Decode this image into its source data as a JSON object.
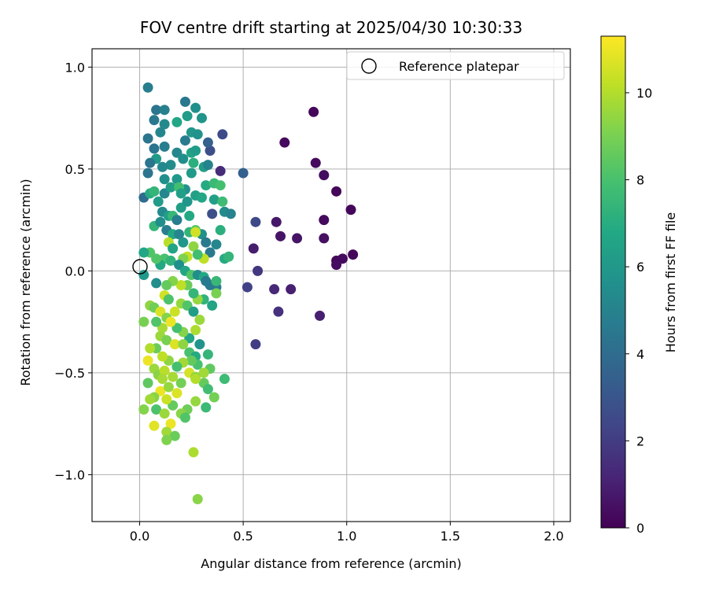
{
  "chart_data": {
    "type": "scatter",
    "title": "FOV centre drift starting at 2025/04/30 10:30:33",
    "xlabel": "Angular distance from reference (arcmin)",
    "ylabel": "Rotation from reference (arcmin)",
    "xlim": [
      -0.23,
      2.08
    ],
    "ylim": [
      -1.23,
      1.09
    ],
    "xticks": [
      0.0,
      0.5,
      1.0,
      1.5,
      2.0
    ],
    "xtick_labels": [
      "0.0",
      "0.5",
      "1.0",
      "1.5",
      "2.0"
    ],
    "yticks": [
      -1.0,
      -0.5,
      0.0,
      0.5,
      1.0
    ],
    "ytick_labels": [
      "−1.0",
      "−0.5",
      "0.0",
      "0.5",
      "1.0"
    ],
    "grid": true,
    "legend": {
      "placement": "top-right",
      "entries": [
        "Reference platepar"
      ]
    },
    "reference_point": {
      "x": 0.0,
      "y": 0.0
    },
    "colorbar": {
      "label": "Hours from first FF file",
      "range": [
        0,
        11.3
      ],
      "ticks": [
        0,
        2,
        4,
        6,
        8,
        10
      ],
      "tick_labels": [
        "0",
        "2",
        "4",
        "6",
        "8",
        "10"
      ],
      "colormap": "viridis"
    },
    "points": [
      [
        0.84,
        0.78,
        0.2
      ],
      [
        0.7,
        0.63,
        0.3
      ],
      [
        0.85,
        0.53,
        0.3
      ],
      [
        0.89,
        0.47,
        0.4
      ],
      [
        0.95,
        0.39,
        0.2
      ],
      [
        1.02,
        0.3,
        0.2
      ],
      [
        0.89,
        0.25,
        0.3
      ],
      [
        0.89,
        0.16,
        0.5
      ],
      [
        0.76,
        0.16,
        0.6
      ],
      [
        0.68,
        0.17,
        0.6
      ],
      [
        0.66,
        0.24,
        0.7
      ],
      [
        0.95,
        0.05,
        0.2
      ],
      [
        0.98,
        0.06,
        0.3
      ],
      [
        1.03,
        0.08,
        0.2
      ],
      [
        0.95,
        0.03,
        0.4
      ],
      [
        0.87,
        -0.22,
        1.0
      ],
      [
        0.73,
        -0.09,
        1.0
      ],
      [
        0.65,
        -0.09,
        1.3
      ],
      [
        0.67,
        -0.2,
        1.6
      ],
      [
        0.55,
        0.11,
        0.9
      ],
      [
        0.56,
        0.24,
        2.5
      ],
      [
        0.57,
        0.0,
        1.8
      ],
      [
        0.52,
        -0.08,
        2.2
      ],
      [
        0.56,
        -0.36,
        2.0
      ],
      [
        0.5,
        0.48,
        3.5
      ],
      [
        0.39,
        0.49,
        1.4
      ],
      [
        0.4,
        0.67,
        2.6
      ],
      [
        0.34,
        0.59,
        2.7
      ],
      [
        0.33,
        0.63,
        3.5
      ],
      [
        0.35,
        0.28,
        2.7
      ],
      [
        0.04,
        0.9,
        4.8
      ],
      [
        0.08,
        0.79,
        4.4
      ],
      [
        0.12,
        0.79,
        4.9
      ],
      [
        0.22,
        0.83,
        4.5
      ],
      [
        0.27,
        0.8,
        5.6
      ],
      [
        0.3,
        0.75,
        5.8
      ],
      [
        0.23,
        0.76,
        6.2
      ],
      [
        0.18,
        0.73,
        6.7
      ],
      [
        0.12,
        0.72,
        5.3
      ],
      [
        0.07,
        0.74,
        4.5
      ],
      [
        0.1,
        0.68,
        5.2
      ],
      [
        0.04,
        0.65,
        4.4
      ],
      [
        0.07,
        0.6,
        4.4
      ],
      [
        0.12,
        0.61,
        4.8
      ],
      [
        0.18,
        0.58,
        5.2
      ],
      [
        0.22,
        0.64,
        4.7
      ],
      [
        0.25,
        0.68,
        6.0
      ],
      [
        0.28,
        0.67,
        5.7
      ],
      [
        0.21,
        0.55,
        5.5
      ],
      [
        0.25,
        0.58,
        6.6
      ],
      [
        0.27,
        0.59,
        6.2
      ],
      [
        0.31,
        0.51,
        6.3
      ],
      [
        0.33,
        0.52,
        5.0
      ],
      [
        0.25,
        0.48,
        6.1
      ],
      [
        0.26,
        0.53,
        7.1
      ],
      [
        0.15,
        0.52,
        5.4
      ],
      [
        0.11,
        0.51,
        5.3
      ],
      [
        0.08,
        0.55,
        6.1
      ],
      [
        0.05,
        0.53,
        4.4
      ],
      [
        0.04,
        0.48,
        4.4
      ],
      [
        0.12,
        0.45,
        5.6
      ],
      [
        0.18,
        0.45,
        6.0
      ],
      [
        0.22,
        0.4,
        5.7
      ],
      [
        0.27,
        0.37,
        6.4
      ],
      [
        0.3,
        0.36,
        6.7
      ],
      [
        0.32,
        0.42,
        6.9
      ],
      [
        0.36,
        0.43,
        7.6
      ],
      [
        0.39,
        0.42,
        7.9
      ],
      [
        0.36,
        0.35,
        6.4
      ],
      [
        0.4,
        0.34,
        7.7
      ],
      [
        0.41,
        0.29,
        5.4
      ],
      [
        0.44,
        0.28,
        5.0
      ],
      [
        0.02,
        0.36,
        4.0
      ],
      [
        0.05,
        0.38,
        6.9
      ],
      [
        0.07,
        0.39,
        7.4
      ],
      [
        0.09,
        0.34,
        6.2
      ],
      [
        0.12,
        0.38,
        5.2
      ],
      [
        0.15,
        0.41,
        6.3
      ],
      [
        0.19,
        0.41,
        7.8
      ],
      [
        0.2,
        0.38,
        6.4
      ],
      [
        0.11,
        0.29,
        5.4
      ],
      [
        0.14,
        0.27,
        6.3
      ],
      [
        0.16,
        0.27,
        7.5
      ],
      [
        0.18,
        0.25,
        4.8
      ],
      [
        0.2,
        0.31,
        6.3
      ],
      [
        0.23,
        0.34,
        5.9
      ],
      [
        0.24,
        0.27,
        6.8
      ],
      [
        0.07,
        0.22,
        7.4
      ],
      [
        0.1,
        0.24,
        5.5
      ],
      [
        0.13,
        0.2,
        4.8
      ],
      [
        0.16,
        0.18,
        6.8
      ],
      [
        0.19,
        0.18,
        5.2
      ],
      [
        0.21,
        0.14,
        5.9
      ],
      [
        0.24,
        0.19,
        7.3
      ],
      [
        0.27,
        0.2,
        8.3
      ],
      [
        0.3,
        0.18,
        5.6
      ],
      [
        0.32,
        0.14,
        4.6
      ],
      [
        0.34,
        0.09,
        4.6
      ],
      [
        0.37,
        0.13,
        5.2
      ],
      [
        0.39,
        0.2,
        7.1
      ],
      [
        0.41,
        0.06,
        6.9
      ],
      [
        0.43,
        0.07,
        7.4
      ],
      [
        0.27,
        0.19,
        10.5
      ],
      [
        0.26,
        0.12,
        9.4
      ],
      [
        0.31,
        0.06,
        10.2
      ],
      [
        0.28,
        0.08,
        7.8
      ],
      [
        0.23,
        0.07,
        10.3
      ],
      [
        0.21,
        0.06,
        9.1
      ],
      [
        0.14,
        0.14,
        10.1
      ],
      [
        0.16,
        0.11,
        6.6
      ],
      [
        0.12,
        0.06,
        8.0
      ],
      [
        0.1,
        0.03,
        6.8
      ],
      [
        0.05,
        0.09,
        8.2
      ],
      [
        0.02,
        0.09,
        6.7
      ],
      [
        0.02,
        -0.02,
        6.0
      ],
      [
        0.08,
        0.06,
        8.2
      ],
      [
        0.15,
        0.05,
        7.3
      ],
      [
        0.19,
        0.03,
        5.6
      ],
      [
        0.22,
        0.0,
        6.7
      ],
      [
        0.25,
        -0.02,
        8.2
      ],
      [
        0.28,
        -0.02,
        5.5
      ],
      [
        0.31,
        -0.03,
        6.8
      ],
      [
        0.32,
        -0.05,
        4.6
      ],
      [
        0.34,
        -0.07,
        4.6
      ],
      [
        0.37,
        -0.08,
        4.6
      ],
      [
        0.37,
        -0.05,
        7.5
      ],
      [
        0.37,
        -0.11,
        9.0
      ],
      [
        0.35,
        -0.17,
        6.6
      ],
      [
        0.31,
        -0.14,
        7.3
      ],
      [
        0.28,
        -0.14,
        9.5
      ],
      [
        0.26,
        -0.11,
        7.4
      ],
      [
        0.23,
        -0.07,
        8.7
      ],
      [
        0.2,
        -0.07,
        10.2
      ],
      [
        0.16,
        -0.05,
        9.2
      ],
      [
        0.13,
        -0.07,
        8.6
      ],
      [
        0.08,
        -0.06,
        5.5
      ],
      [
        0.12,
        -0.12,
        10.5
      ],
      [
        0.14,
        -0.14,
        8.1
      ],
      [
        0.05,
        -0.17,
        9.4
      ],
      [
        0.07,
        -0.18,
        8.8
      ],
      [
        0.1,
        -0.2,
        10.7
      ],
      [
        0.13,
        -0.23,
        9.2
      ],
      [
        0.17,
        -0.2,
        10.4
      ],
      [
        0.2,
        -0.16,
        9.5
      ],
      [
        0.23,
        -0.17,
        8.2
      ],
      [
        0.26,
        -0.2,
        6.3
      ],
      [
        0.29,
        -0.24,
        9.6
      ],
      [
        0.27,
        -0.29,
        9.9
      ],
      [
        0.24,
        -0.33,
        6.7
      ],
      [
        0.21,
        -0.3,
        9.2
      ],
      [
        0.18,
        -0.28,
        7.9
      ],
      [
        0.15,
        -0.25,
        11.0
      ],
      [
        0.11,
        -0.28,
        9.8
      ],
      [
        0.08,
        -0.25,
        8.2
      ],
      [
        0.02,
        -0.25,
        9.0
      ],
      [
        0.1,
        -0.32,
        9.6
      ],
      [
        0.13,
        -0.34,
        9.0
      ],
      [
        0.17,
        -0.36,
        10.7
      ],
      [
        0.21,
        -0.36,
        9.4
      ],
      [
        0.24,
        -0.4,
        8.0
      ],
      [
        0.27,
        -0.42,
        6.9
      ],
      [
        0.29,
        -0.36,
        5.8
      ],
      [
        0.33,
        -0.41,
        7.4
      ],
      [
        0.34,
        -0.48,
        8.5
      ],
      [
        0.31,
        -0.5,
        9.7
      ],
      [
        0.28,
        -0.46,
        8.0
      ],
      [
        0.25,
        -0.44,
        8.6
      ],
      [
        0.21,
        -0.45,
        9.7
      ],
      [
        0.18,
        -0.47,
        7.9
      ],
      [
        0.14,
        -0.44,
        9.4
      ],
      [
        0.11,
        -0.42,
        10.2
      ],
      [
        0.08,
        -0.38,
        8.7
      ],
      [
        0.05,
        -0.38,
        10.0
      ],
      [
        0.04,
        -0.44,
        11.0
      ],
      [
        0.07,
        -0.48,
        9.6
      ],
      [
        0.09,
        -0.51,
        9.3
      ],
      [
        0.12,
        -0.49,
        10.1
      ],
      [
        0.16,
        -0.52,
        9.8
      ],
      [
        0.2,
        -0.55,
        8.9
      ],
      [
        0.24,
        -0.5,
        10.6
      ],
      [
        0.27,
        -0.52,
        9.4
      ],
      [
        0.31,
        -0.55,
        8.6
      ],
      [
        0.33,
        -0.58,
        7.8
      ],
      [
        0.36,
        -0.62,
        8.9
      ],
      [
        0.41,
        -0.53,
        7.7
      ],
      [
        0.32,
        -0.67,
        7.6
      ],
      [
        0.27,
        -0.64,
        9.5
      ],
      [
        0.23,
        -0.68,
        8.8
      ],
      [
        0.2,
        -0.7,
        9.3
      ],
      [
        0.16,
        -0.66,
        8.6
      ],
      [
        0.13,
        -0.63,
        10.4
      ],
      [
        0.1,
        -0.59,
        11.0
      ],
      [
        0.07,
        -0.62,
        9.3
      ],
      [
        0.04,
        -0.55,
        8.5
      ],
      [
        0.05,
        -0.63,
        9.7
      ],
      [
        0.08,
        -0.68,
        8.1
      ],
      [
        0.12,
        -0.7,
        9.6
      ],
      [
        0.15,
        -0.75,
        11.0
      ],
      [
        0.13,
        -0.79,
        9.7
      ],
      [
        0.17,
        -0.81,
        8.7
      ],
      [
        0.13,
        -0.83,
        9.1
      ],
      [
        0.07,
        -0.76,
        10.8
      ],
      [
        0.02,
        -0.68,
        9.2
      ],
      [
        0.26,
        -0.89,
        9.9
      ],
      [
        0.28,
        -1.12,
        9.3
      ],
      [
        0.22,
        -0.72,
        8.2
      ],
      [
        0.27,
        -0.53,
        10.0
      ],
      [
        0.18,
        -0.6,
        10.7
      ],
      [
        0.14,
        -0.57,
        9.5
      ],
      [
        0.11,
        -0.53,
        9.8
      ]
    ]
  }
}
